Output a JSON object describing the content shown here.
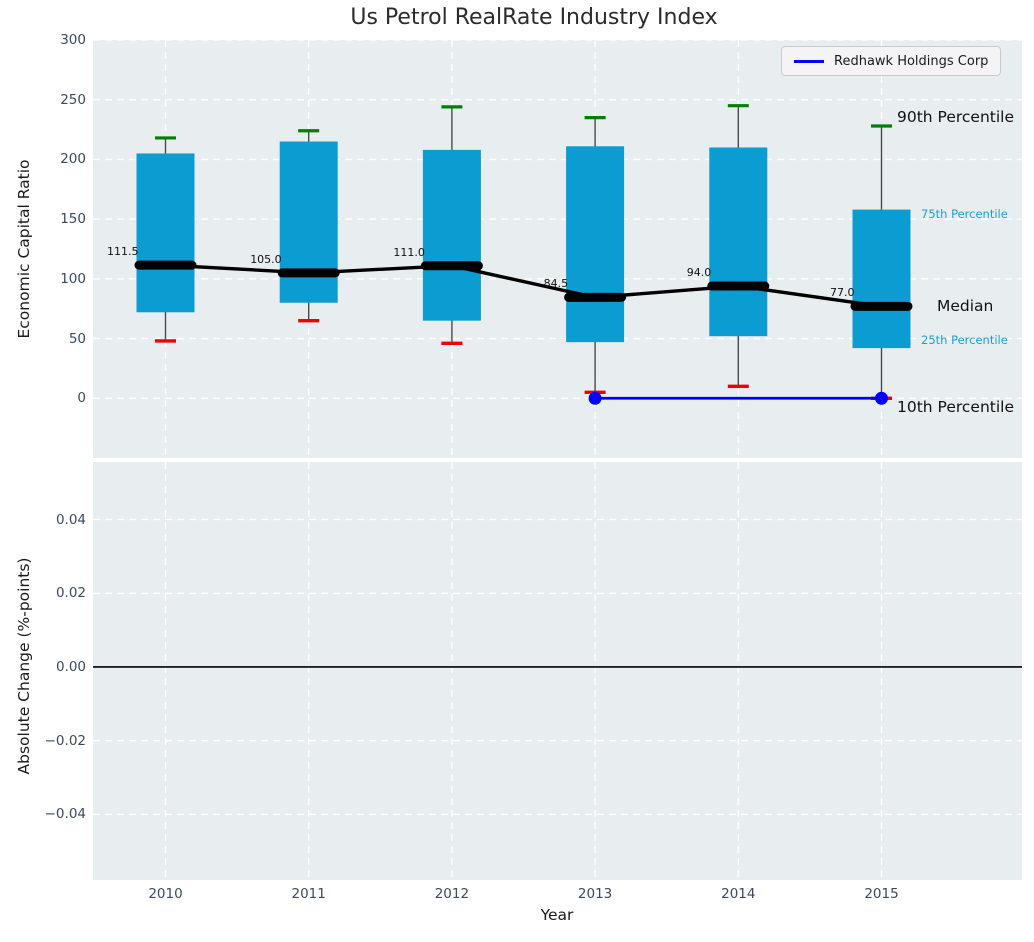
{
  "title": "Us Petrol RealRate Industry Index",
  "legend": {
    "label": "Redhawk Holdings Corp"
  },
  "colors": {
    "box": "#0b9cd1",
    "whisker": "#4a4a4a",
    "p90_cap": "#008000",
    "p10_cap": "#f20000",
    "median": "#000000",
    "company_line": "#0000ff",
    "percentile_label_small": "#189fd9",
    "label_dark": "#111111",
    "axes_bg": "#e8eef0",
    "grid": "#ffffff",
    "tick": "#3b4a5c"
  },
  "chart_data": [
    {
      "type": "boxplot",
      "title": "Us Petrol RealRate Industry Index",
      "ylabel": "Economic Capital Ratio",
      "ylim": [
        -50,
        300
      ],
      "yticks": [
        300,
        250,
        200,
        150,
        100,
        50,
        0
      ],
      "ytick_labels": [
        "300",
        "250",
        "200",
        "150",
        "100",
        "50",
        "0"
      ],
      "categories": [
        2010,
        2011,
        2012,
        2013,
        2014,
        2015
      ],
      "grid": "dashed-white",
      "legend_position": "upper-right",
      "series": [
        {
          "name": "90th Percentile",
          "values": [
            218,
            224,
            244,
            235,
            245,
            228
          ]
        },
        {
          "name": "75th Percentile",
          "values": [
            205,
            215,
            208,
            211,
            210,
            158
          ]
        },
        {
          "name": "Median",
          "values": [
            111.5,
            105.0,
            111.0,
            84.5,
            94.0,
            77.0
          ]
        },
        {
          "name": "25th Percentile",
          "values": [
            72,
            80,
            65,
            47,
            52,
            42
          ]
        },
        {
          "name": "10th Percentile",
          "values": [
            48,
            65,
            46,
            5,
            10,
            0
          ]
        }
      ],
      "median_labels": [
        "111.5",
        "105.0",
        "111.0",
        "84.5",
        "94.0",
        "77.0"
      ],
      "company_line": {
        "name": "Redhawk Holdings Corp",
        "x": [
          2013,
          2015
        ],
        "y": [
          0,
          0
        ]
      },
      "right_labels": [
        {
          "id": "p90",
          "label": "90th Percentile",
          "style": "large"
        },
        {
          "id": "p75",
          "label": "75th Percentile",
          "style": "small"
        },
        {
          "id": "median",
          "label": "Median",
          "style": "large"
        },
        {
          "id": "p25",
          "label": "25th Percentile",
          "style": "small"
        },
        {
          "id": "p10",
          "label": "10th Percentile",
          "style": "large"
        }
      ]
    },
    {
      "type": "line",
      "ylabel": "Absolute Change (%-points)",
      "xlabel": "Year",
      "ylim": [
        -0.0578,
        0.0556
      ],
      "yticks": [
        0.04,
        0.02,
        0,
        -0.02,
        -0.04
      ],
      "ytick_labels": [
        "0.04",
        "0.02",
        "0.00",
        "−0.02",
        "−0.04"
      ],
      "xtick_labels": [
        "2010",
        "2011",
        "2012",
        "2013",
        "2014",
        "2015"
      ],
      "zero_line": true,
      "series": []
    }
  ]
}
